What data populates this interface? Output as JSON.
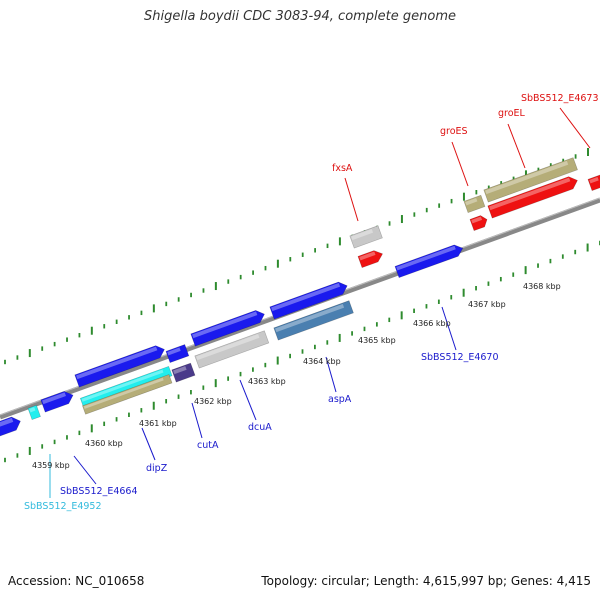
{
  "title": "Shigella boydii CDC 3083-94, complete genome",
  "footer": {
    "accession": "Accession: NC_010658",
    "topology": "Topology: circular; Length: 4,615,997 bp; Genes: 4,415"
  },
  "scale": {
    "unit_label": "kbp",
    "ticks": [
      "4359 kbp",
      "4360 kbp",
      "4361 kbp",
      "4362 kbp",
      "4363 kbp",
      "4364 kbp",
      "4365 kbp",
      "4366 kbp",
      "4367 kbp",
      "4368 kbp"
    ]
  },
  "gene_labels": [
    {
      "id": "sbbs512-e4952",
      "text": "SbBS512_E4952",
      "color": "#33bbdd"
    },
    {
      "id": "sbbs512-e4664",
      "text": "SbBS512_E4664",
      "color": "#1a1acc"
    },
    {
      "id": "dipz",
      "text": "dipZ",
      "color": "#1a1acc"
    },
    {
      "id": "cuta",
      "text": "cutA",
      "color": "#1a1acc"
    },
    {
      "id": "dcua",
      "text": "dcuA",
      "color": "#1a1acc"
    },
    {
      "id": "aspa",
      "text": "aspA",
      "color": "#1a1acc"
    },
    {
      "id": "sbbs512-e4670",
      "text": "SbBS512_E4670",
      "color": "#1a1acc"
    },
    {
      "id": "fxsa",
      "text": "fxsA",
      "color": "#dd1111"
    },
    {
      "id": "groes",
      "text": "groES",
      "color": "#dd1111"
    },
    {
      "id": "groel",
      "text": "groEL",
      "color": "#dd1111"
    },
    {
      "id": "sbbs512-e4673",
      "text": "SbBS512_E4673",
      "color": "#dd1111"
    }
  ],
  "colors": {
    "backbone": "#888888",
    "tick_green": "#2e8b2e",
    "gene_blue": "#1a1aee",
    "gene_red": "#ee1111",
    "gene_gray": "#c8c8c8",
    "gene_khaki": "#b5ad78",
    "gene_steel": "#4a7fb0",
    "gene_cyan": "#22eeee",
    "gene_indigo": "#4a3a8a"
  }
}
